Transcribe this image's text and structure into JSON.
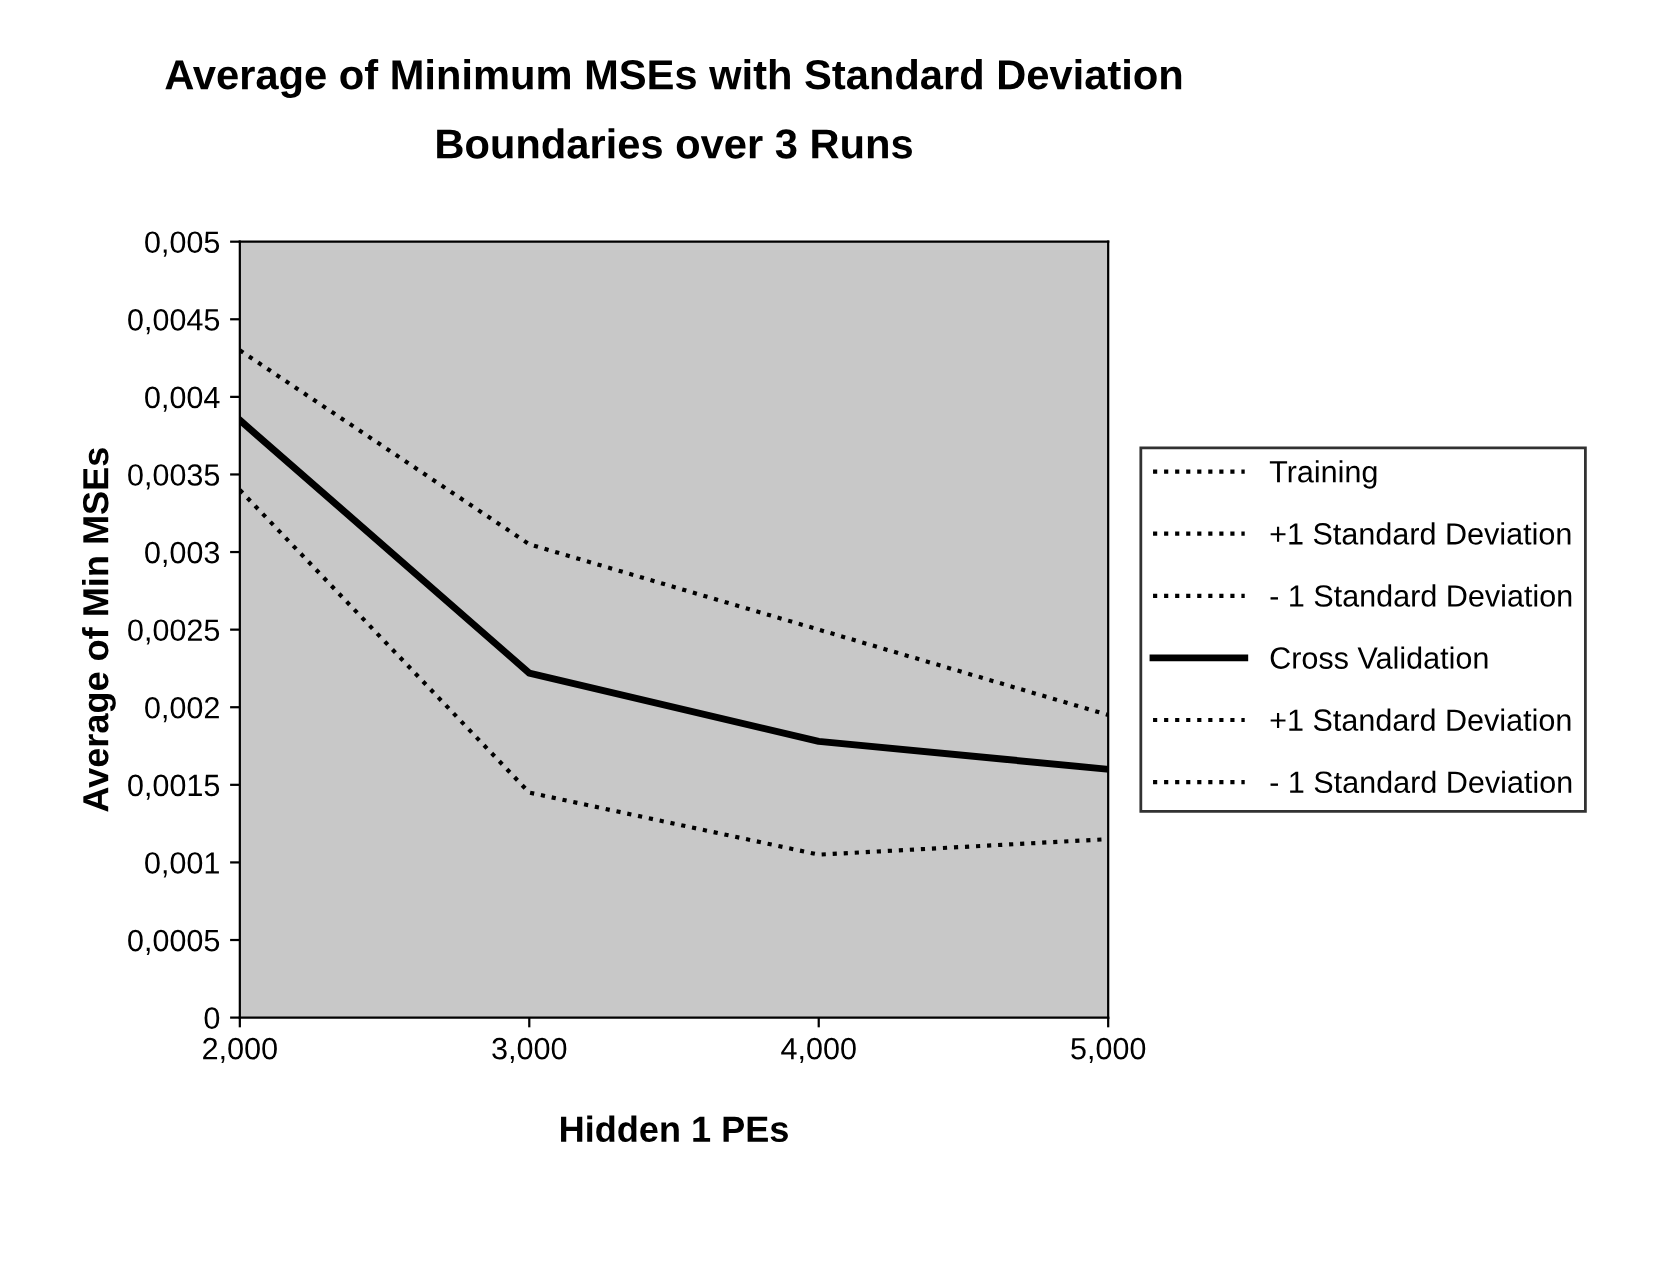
{
  "chart_data": {
    "type": "line",
    "title": "Average of Minimum MSEs with Standard Deviation\nBoundaries over 3 Runs",
    "xlabel": "Hidden 1 PEs",
    "ylabel": "Average of Min MSEs",
    "x": [
      2,
      3,
      4,
      5
    ],
    "series": [
      {
        "name": "Training",
        "color": "#000000",
        "line_style": "dotted",
        "values": [
          null,
          null,
          null,
          null
        ]
      },
      {
        "name": "+1 Standard Deviation",
        "color": "#000000",
        "line_style": "dotted",
        "values": [
          null,
          null,
          null,
          null
        ]
      },
      {
        "name": "- 1 Standard Deviation",
        "color": "#000000",
        "line_style": "dotted",
        "values": [
          null,
          null,
          null,
          null
        ]
      },
      {
        "name": "Cross Validation",
        "color": "#000000",
        "line_style": "solid",
        "values": [
          0.00385,
          0.00222,
          0.00178,
          0.0016
        ]
      },
      {
        "name": "+1 Standard Deviation",
        "color": "#000000",
        "line_style": "dotted",
        "values": [
          0.0043,
          0.00305,
          0.0025,
          0.00195
        ]
      },
      {
        "name": "- 1 Standard Deviation",
        "color": "#000000",
        "line_style": "dotted",
        "values": [
          0.0034,
          0.00145,
          0.00105,
          0.00115
        ]
      }
    ],
    "xlim": [
      2,
      5
    ],
    "xticks": [
      {
        "value": 2,
        "label": "2,000"
      },
      {
        "value": 3,
        "label": "3,000"
      },
      {
        "value": 4,
        "label": "4,000"
      },
      {
        "value": 5,
        "label": "5,000"
      }
    ],
    "ylim": [
      0,
      0.005
    ],
    "yticks": [
      0,
      {
        "value": 0.0005,
        "label": "0,0005"
      },
      {
        "value": 0.001,
        "label": "0,001"
      },
      {
        "value": 0.0015,
        "label": "0,0015"
      },
      {
        "value": 0.002,
        "label": "0,002"
      },
      {
        "value": 0.0025,
        "label": "0,0025"
      },
      {
        "value": 0.003,
        "label": "0,003"
      },
      {
        "value": 0.0035,
        "label": "0,0035"
      },
      {
        "value": 0.004,
        "label": "0,004"
      },
      {
        "value": 0.0045,
        "label": "0,0045"
      },
      {
        "value": 0.005,
        "label": "0,005"
      }
    ],
    "grid": false,
    "legend": "right",
    "marker": "none"
  }
}
